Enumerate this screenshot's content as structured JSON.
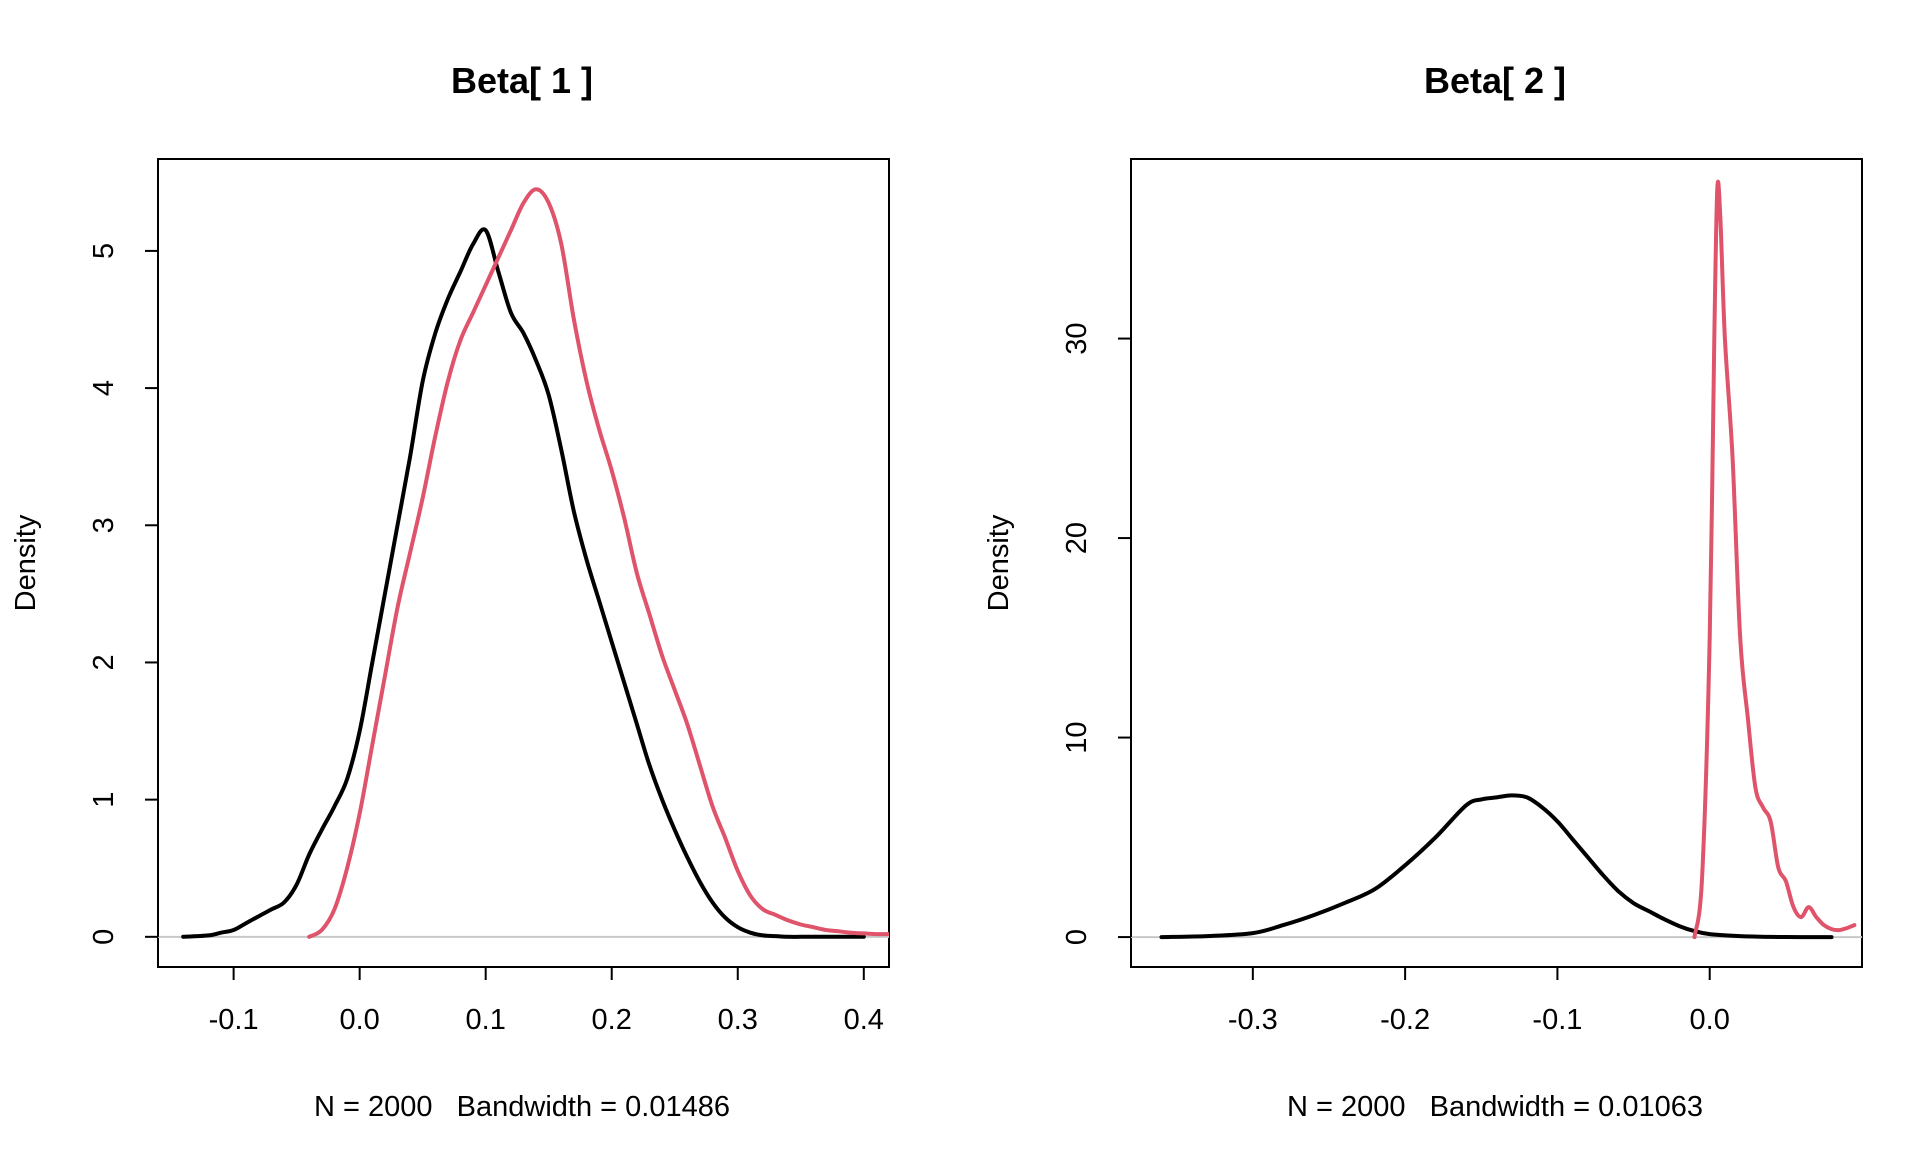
{
  "chart_data": [
    {
      "type": "line",
      "title": "Beta[ 1 ]",
      "xlabel": "N = 2000   Bandwidth = 0.01486",
      "ylabel": "Density",
      "xlim": [
        -0.16,
        0.42
      ],
      "ylim": [
        -0.22,
        5.67
      ],
      "xticks": [
        -0.1,
        0.0,
        0.1,
        0.2,
        0.3,
        0.4
      ],
      "xtick_labels": [
        "-0.1",
        "0.0",
        "0.1",
        "0.2",
        "0.3",
        "0.4"
      ],
      "yticks": [
        0,
        1,
        2,
        3,
        4,
        5
      ],
      "ytick_labels": [
        "0",
        "1",
        "2",
        "3",
        "4",
        "5"
      ],
      "grid": false,
      "legend": "none",
      "series": [
        {
          "color": "#000000",
          "x": [
            -0.14,
            -0.12,
            -0.11,
            -0.1,
            -0.09,
            -0.08,
            -0.07,
            -0.06,
            -0.05,
            -0.04,
            -0.03,
            -0.02,
            -0.01,
            0.0,
            0.01,
            0.02,
            0.03,
            0.04,
            0.05,
            0.06,
            0.07,
            0.08,
            0.09,
            0.1,
            0.11,
            0.12,
            0.13,
            0.14,
            0.15,
            0.16,
            0.17,
            0.18,
            0.19,
            0.2,
            0.21,
            0.22,
            0.23,
            0.24,
            0.25,
            0.26,
            0.27,
            0.28,
            0.29,
            0.3,
            0.31,
            0.32,
            0.33,
            0.34,
            0.35,
            0.36,
            0.37,
            0.38,
            0.39,
            0.4
          ],
          "y": [
            0.0,
            0.01,
            0.03,
            0.05,
            0.1,
            0.15,
            0.2,
            0.25,
            0.38,
            0.6,
            0.78,
            0.95,
            1.15,
            1.5,
            2.0,
            2.5,
            3.0,
            3.5,
            4.05,
            4.4,
            4.65,
            4.85,
            5.05,
            5.15,
            4.85,
            4.55,
            4.4,
            4.2,
            3.95,
            3.55,
            3.1,
            2.75,
            2.45,
            2.15,
            1.85,
            1.55,
            1.25,
            1.0,
            0.78,
            0.58,
            0.4,
            0.25,
            0.14,
            0.07,
            0.03,
            0.01,
            0.005,
            0.0,
            0.0,
            0.0,
            0.0,
            0.0,
            0.0,
            0.0
          ]
        },
        {
          "color": "#DF536B",
          "x": [
            -0.04,
            -0.03,
            -0.02,
            -0.01,
            0.0,
            0.01,
            0.02,
            0.03,
            0.04,
            0.05,
            0.06,
            0.07,
            0.08,
            0.09,
            0.1,
            0.11,
            0.12,
            0.13,
            0.14,
            0.15,
            0.16,
            0.17,
            0.18,
            0.19,
            0.2,
            0.21,
            0.22,
            0.23,
            0.24,
            0.25,
            0.26,
            0.27,
            0.28,
            0.29,
            0.3,
            0.31,
            0.32,
            0.33,
            0.34,
            0.35,
            0.36,
            0.37,
            0.38,
            0.39,
            0.4,
            0.41,
            0.42
          ],
          "y": [
            0.0,
            0.05,
            0.2,
            0.5,
            0.9,
            1.4,
            1.9,
            2.4,
            2.8,
            3.2,
            3.65,
            4.05,
            4.35,
            4.55,
            4.75,
            4.95,
            5.15,
            5.35,
            5.45,
            5.35,
            5.05,
            4.5,
            4.05,
            3.7,
            3.4,
            3.05,
            2.65,
            2.35,
            2.05,
            1.8,
            1.55,
            1.25,
            0.95,
            0.72,
            0.48,
            0.3,
            0.2,
            0.16,
            0.12,
            0.09,
            0.07,
            0.05,
            0.04,
            0.03,
            0.025,
            0.02,
            0.02
          ]
        }
      ]
    },
    {
      "type": "line",
      "title": "Beta[ 2 ]",
      "xlabel": "N = 2000   Bandwidth = 0.01063",
      "ylabel": "Density",
      "xlim": [
        -0.38,
        0.1
      ],
      "ylim": [
        -1.5,
        39.0
      ],
      "xticks": [
        -0.3,
        -0.2,
        -0.1,
        0.0
      ],
      "xtick_labels": [
        "-0.3",
        "-0.2",
        "-0.1",
        "0.0"
      ],
      "yticks": [
        0,
        10,
        20,
        30
      ],
      "ytick_labels": [
        "0",
        "10",
        "20",
        "30"
      ],
      "grid": false,
      "legend": "none",
      "series": [
        {
          "color": "#000000",
          "x": [
            -0.36,
            -0.33,
            -0.3,
            -0.28,
            -0.26,
            -0.24,
            -0.22,
            -0.2,
            -0.18,
            -0.16,
            -0.15,
            -0.14,
            -0.13,
            -0.12,
            -0.11,
            -0.1,
            -0.09,
            -0.08,
            -0.07,
            -0.06,
            -0.05,
            -0.04,
            -0.03,
            -0.02,
            -0.01,
            0.0,
            0.02,
            0.04,
            0.06,
            0.08
          ],
          "y": [
            0.0,
            0.05,
            0.2,
            0.6,
            1.1,
            1.7,
            2.4,
            3.6,
            5.0,
            6.6,
            6.9,
            7.0,
            7.1,
            7.0,
            6.5,
            5.8,
            4.9,
            4.0,
            3.1,
            2.3,
            1.7,
            1.3,
            0.9,
            0.55,
            0.3,
            0.15,
            0.05,
            0.01,
            0.0,
            0.0
          ]
        },
        {
          "color": "#DF536B",
          "x": [
            -0.01,
            -0.005,
            0.0,
            0.003,
            0.005,
            0.007,
            0.01,
            0.015,
            0.02,
            0.025,
            0.03,
            0.035,
            0.04,
            0.045,
            0.05,
            0.055,
            0.06,
            0.065,
            0.07,
            0.075,
            0.08,
            0.085,
            0.09,
            0.095
          ],
          "y": [
            0.0,
            3.0,
            15.0,
            30.0,
            37.5,
            36.0,
            30.0,
            24.0,
            15.0,
            11.0,
            7.5,
            6.5,
            5.8,
            3.5,
            2.8,
            1.5,
            1.0,
            1.5,
            1.0,
            0.6,
            0.4,
            0.35,
            0.45,
            0.6
          ]
        }
      ]
    }
  ]
}
